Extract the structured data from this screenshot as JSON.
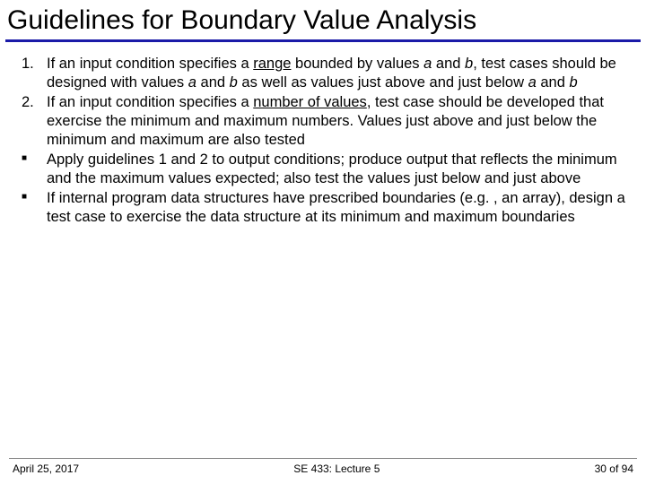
{
  "title": "Guidelines for Boundary Value Analysis",
  "items": [
    {
      "marker": "1.",
      "type": "number",
      "segments": [
        {
          "t": "If an input condition specifies a "
        },
        {
          "t": "range",
          "u": true
        },
        {
          "t": " bounded by values "
        },
        {
          "t": "a",
          "i": true
        },
        {
          "t": " and "
        },
        {
          "t": "b",
          "i": true
        },
        {
          "t": ", test cases should be designed with values "
        },
        {
          "t": "a",
          "i": true
        },
        {
          "t": " and "
        },
        {
          "t": "b",
          "i": true
        },
        {
          "t": " as well as values just above and just below "
        },
        {
          "t": "a",
          "i": true
        },
        {
          "t": " and "
        },
        {
          "t": "b",
          "i": true
        }
      ]
    },
    {
      "marker": "2.",
      "type": "number",
      "segments": [
        {
          "t": "If an input condition specifies a "
        },
        {
          "t": "number of values",
          "u": true
        },
        {
          "t": ", test case should be developed that exercise the minimum and maximum numbers.  Values just above and just below the minimum and maximum are also tested"
        }
      ]
    },
    {
      "marker": "§",
      "type": "bullet",
      "segments": [
        {
          "t": "Apply guidelines 1 and 2 to output conditions; produce output that reflects the minimum and the maximum values expected; also test the values just below and just above"
        }
      ]
    },
    {
      "marker": "§",
      "type": "bullet",
      "segments": [
        {
          "t": "If internal program data structures have prescribed boundaries (e.g. , an array), design a test case to exercise the data structure at its minimum and maximum boundaries"
        }
      ]
    }
  ],
  "footer": {
    "left": "April 25, 2017",
    "center": "SE 433: Lecture 5",
    "right_prefix": "30 ",
    "right_suffix": "of 94"
  },
  "colors": {
    "rule": "#1a1aa8",
    "text": "#000000",
    "background": "#ffffff"
  }
}
